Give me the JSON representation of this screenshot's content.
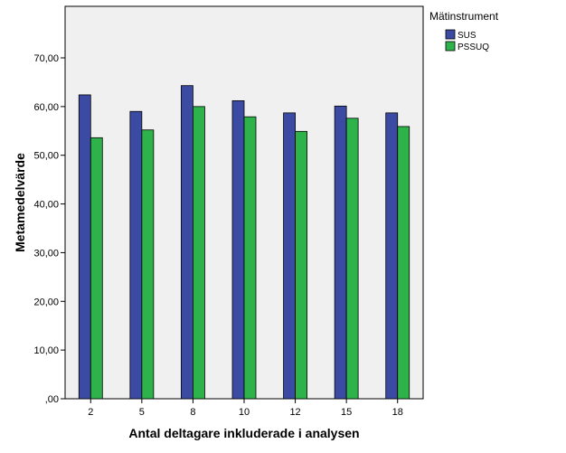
{
  "chart_data": {
    "type": "bar",
    "title": "",
    "xlabel": "Antal deltagare inkluderade i analysen",
    "ylabel": "Metamedelvärde",
    "categories": [
      "2",
      "5",
      "8",
      "10",
      "12",
      "15",
      "18"
    ],
    "series": [
      {
        "name": "SUS",
        "values": [
          62.4,
          59.0,
          64.3,
          61.2,
          58.7,
          60.1,
          58.7
        ],
        "color": "#3b4ba3"
      },
      {
        "name": "PSSUQ",
        "values": [
          53.6,
          55.2,
          60.0,
          57.9,
          54.9,
          57.6,
          55.9
        ],
        "color": "#2db34a"
      }
    ],
    "ylim": [
      0,
      70
    ],
    "yticks": [
      ",00",
      "10,00",
      "20,00",
      "30,00",
      "40,00",
      "50,00",
      "60,00",
      "70,00"
    ],
    "ytick_values": [
      0,
      10,
      20,
      30,
      40,
      50,
      60,
      70
    ],
    "grid": false,
    "legend": {
      "title": "Mätinstrument",
      "placement": "top-right"
    },
    "plot_background": "#f0f0f0"
  }
}
